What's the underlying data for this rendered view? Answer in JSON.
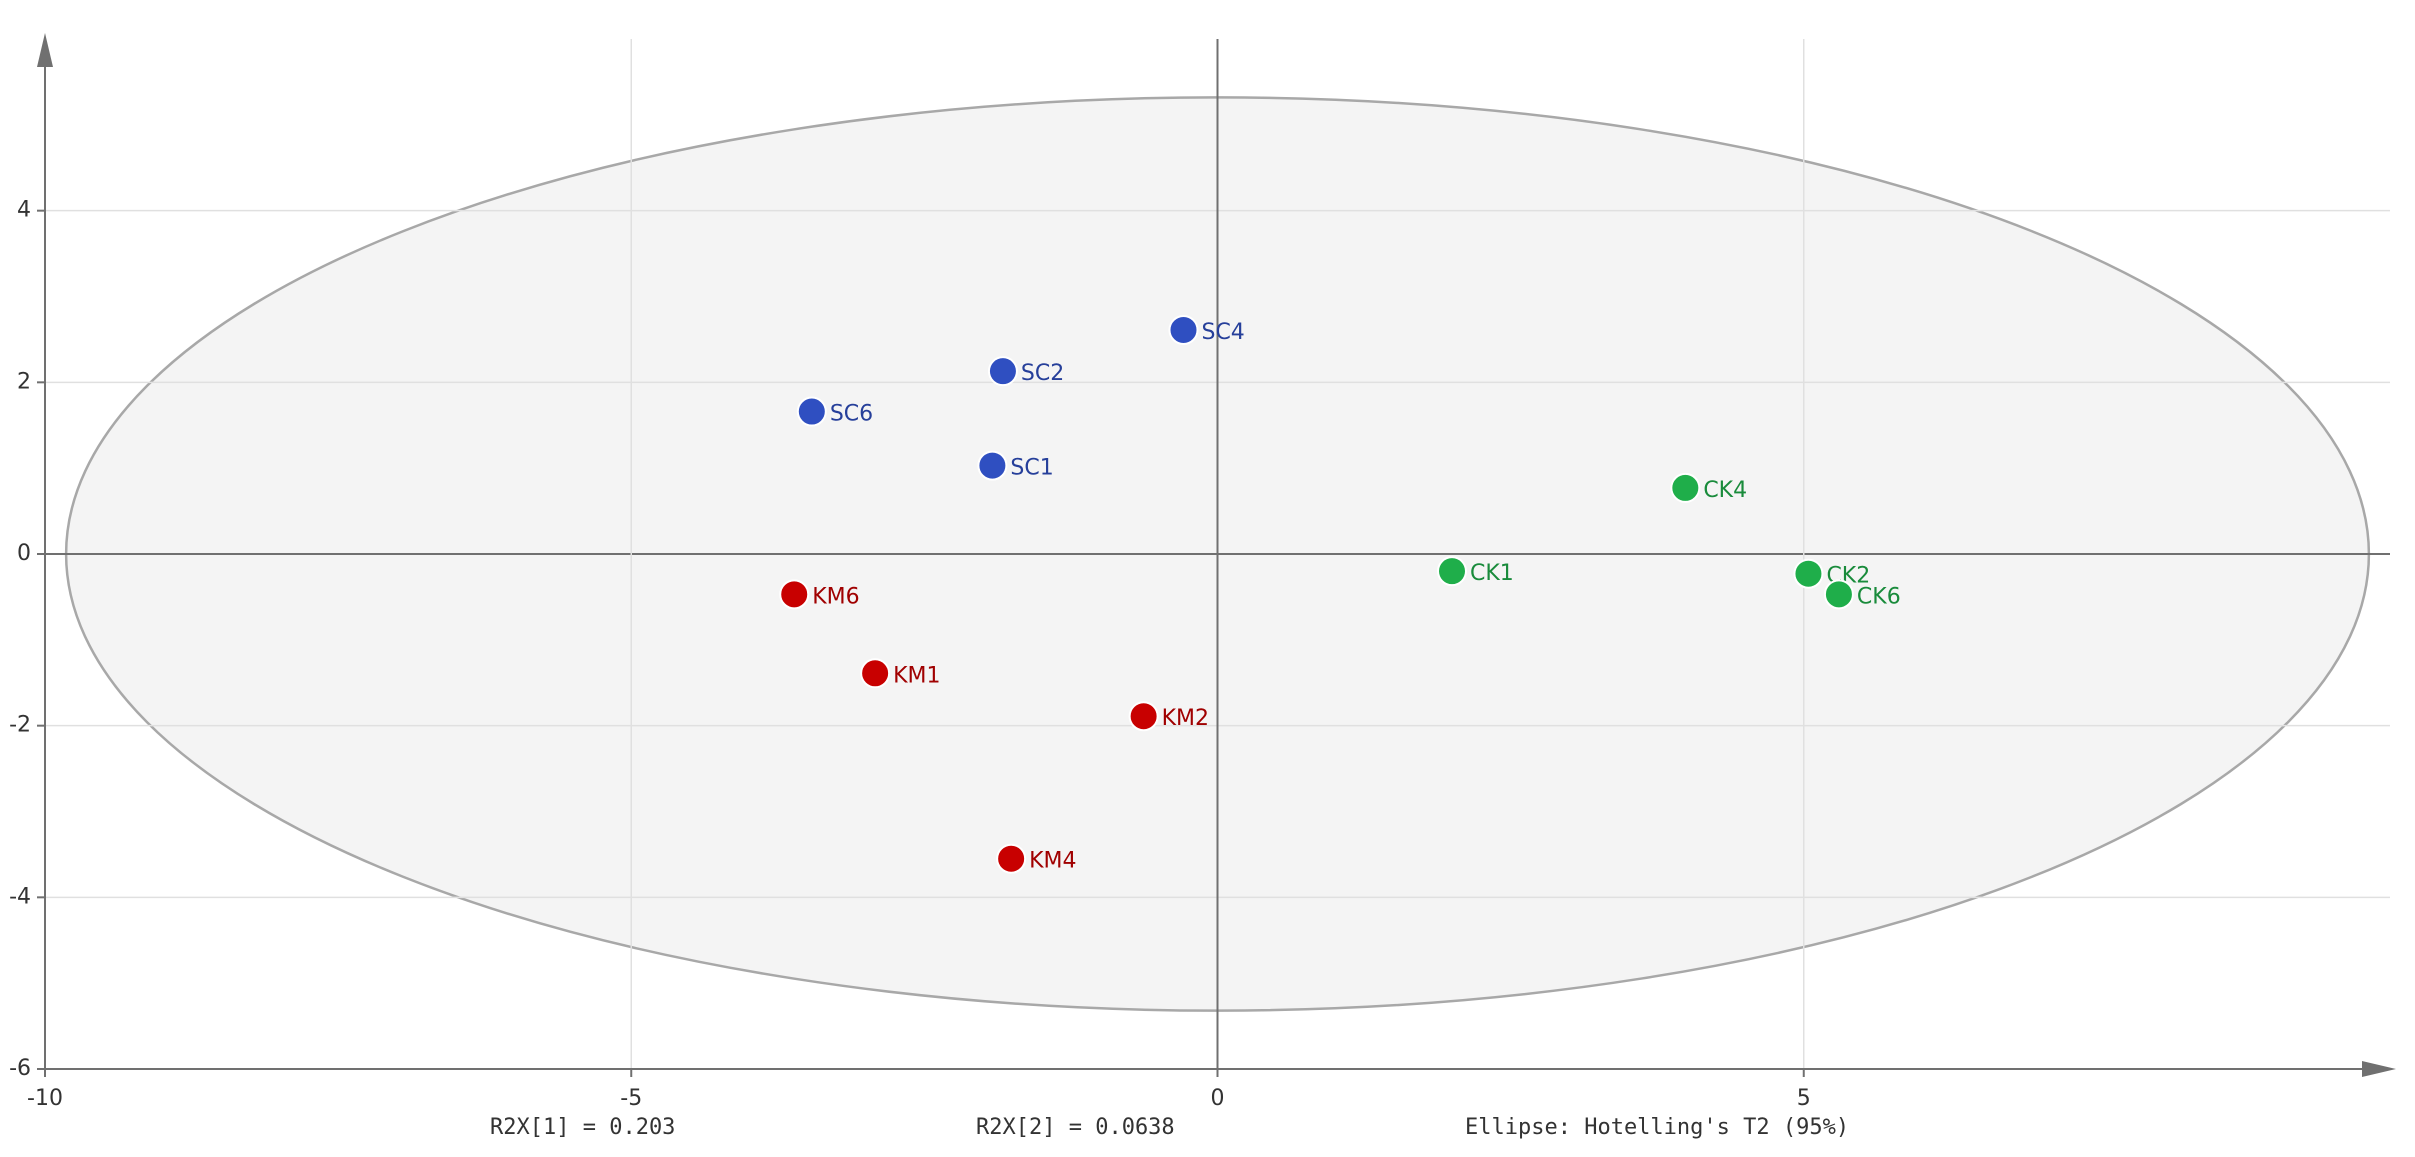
{
  "chart_data": {
    "type": "scatter",
    "xlim": [
      -10,
      10
    ],
    "ylim": [
      -6,
      6
    ],
    "xticks": [
      -10,
      -5,
      0,
      5
    ],
    "yticks": [
      -6,
      -4,
      -2,
      0,
      2,
      4
    ],
    "grid": true,
    "ellipse": {
      "cx": 0,
      "cy": 0,
      "rx": 9.82,
      "ry": 5.32
    },
    "series": [
      {
        "color": "#2f4fc1",
        "labels": [
          "SC4",
          "SC2",
          "SC6",
          "SC1"
        ],
        "x": [
          -0.29,
          -1.83,
          -3.46,
          -1.92
        ],
        "values": [
          2.61,
          2.13,
          1.66,
          1.03
        ]
      },
      {
        "color": "#1fae4a",
        "labels": [
          "CK4",
          "CK1",
          "CK2",
          "CK6"
        ],
        "x": [
          3.99,
          2.0,
          5.04,
          5.3
        ],
        "values": [
          0.77,
          -0.2,
          -0.23,
          -0.47
        ]
      },
      {
        "color": "#c80000",
        "labels": [
          "KM6",
          "KM1",
          "KM2",
          "KM4"
        ],
        "x": [
          -3.61,
          -2.92,
          -0.63,
          -1.76
        ],
        "values": [
          -0.47,
          -1.39,
          -1.89,
          -3.55
        ]
      }
    ],
    "annotations": [
      "R2X[1] = 0.203",
      "R2X[2] = 0.0638",
      "Ellipse: Hotelling's T2 (95%)"
    ]
  }
}
